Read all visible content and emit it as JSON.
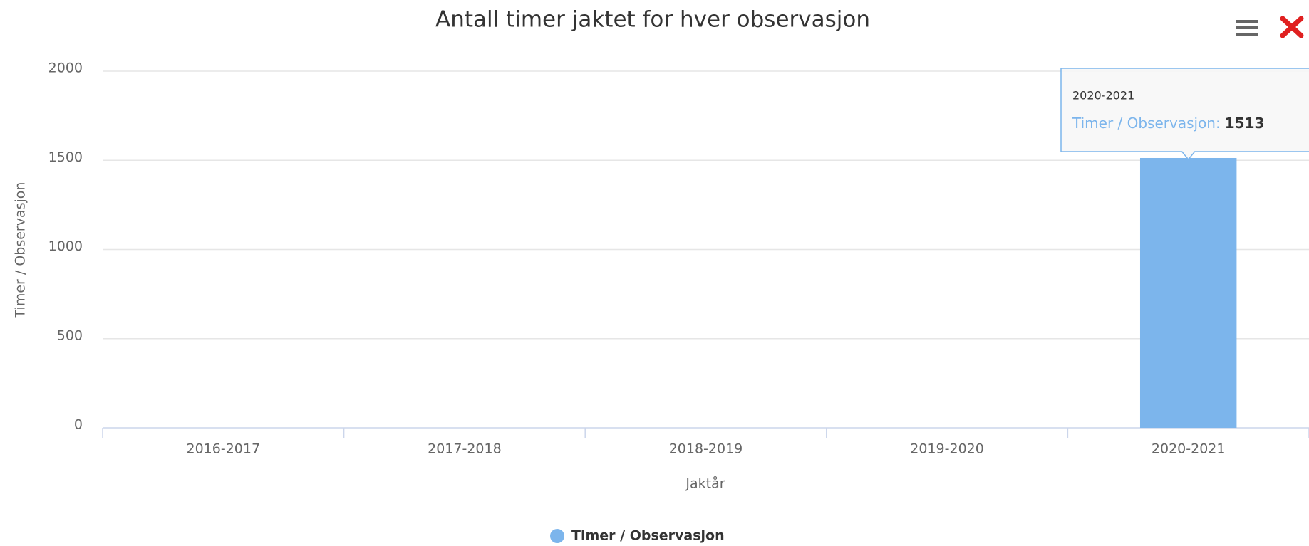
{
  "chart_data": {
    "type": "bar",
    "title": "Antall timer jaktet for hver observasjon",
    "x_label": "Jaktår",
    "y_label": "Timer / Observasjon",
    "categories": [
      "2016-2017",
      "2017-2018",
      "2018-2019",
      "2019-2020",
      "2020-2021"
    ],
    "series": [
      {
        "name": "Timer / Observasjon",
        "color": "#7cb5ec",
        "values": [
          0,
          0,
          0,
          0,
          1513
        ]
      }
    ],
    "ylim": [
      0,
      2000
    ],
    "yticks": [
      0,
      500,
      1000,
      1500,
      2000
    ],
    "grid": true,
    "legend": "bottom",
    "tooltip": {
      "label": "Timer / Observasjon:"
    }
  }
}
